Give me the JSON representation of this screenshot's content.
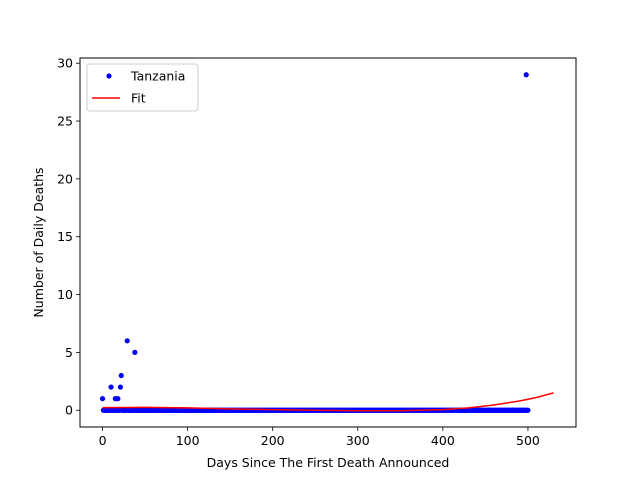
{
  "chart_data": {
    "type": "scatter",
    "xlabel": "Days Since The First Death Announced",
    "ylabel": "Number of Daily Deaths",
    "xlim": [
      -26.5,
      556.5
    ],
    "ylim": [
      -1.45,
      30.45
    ],
    "xticks": [
      0,
      100,
      200,
      300,
      400,
      500
    ],
    "yticks": [
      0,
      5,
      10,
      15,
      20,
      25,
      30
    ],
    "grid": false,
    "legend_position": "top-left",
    "series": [
      {
        "name": "Tanzania",
        "kind": "points",
        "color": "#0000ff",
        "points": [
          [
            0,
            1
          ],
          [
            5,
            0
          ],
          [
            10,
            2
          ],
          [
            15,
            1
          ],
          [
            18,
            1
          ],
          [
            21,
            2
          ],
          [
            22,
            3
          ],
          [
            29,
            6
          ],
          [
            38,
            5
          ],
          [
            498,
            29
          ]
        ],
        "zero_run": {
          "from": 0,
          "to": 500,
          "y": 0
        }
      },
      {
        "name": "Fit",
        "kind": "line",
        "color": "#ff0000",
        "points": [
          [
            0,
            0.22
          ],
          [
            50,
            0.25
          ],
          [
            100,
            0.2
          ],
          [
            150,
            0.12
          ],
          [
            200,
            0.05
          ],
          [
            250,
            0.0
          ],
          [
            300,
            -0.05
          ],
          [
            350,
            -0.05
          ],
          [
            400,
            0.05
          ],
          [
            430,
            0.2
          ],
          [
            460,
            0.45
          ],
          [
            490,
            0.8
          ],
          [
            510,
            1.1
          ],
          [
            530,
            1.5
          ]
        ]
      }
    ]
  }
}
